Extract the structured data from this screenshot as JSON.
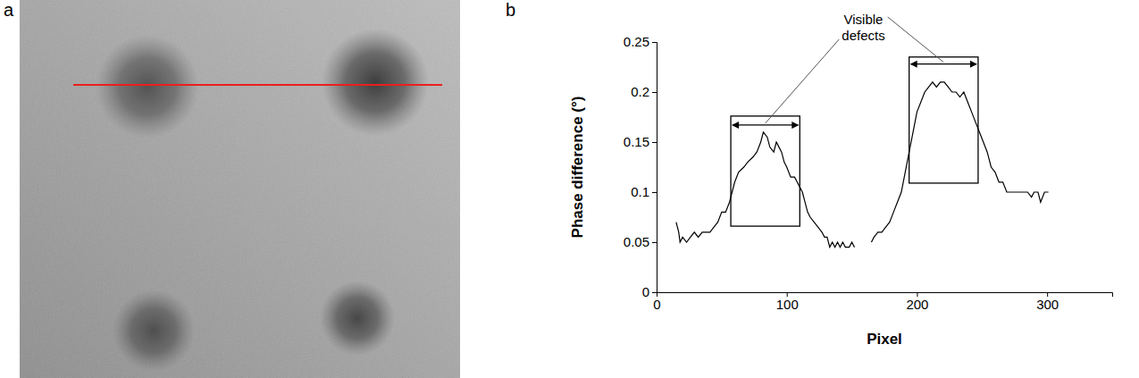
{
  "image_panel": {
    "label": "a"
  },
  "chart_data": {
    "type": "line",
    "panel": "b",
    "x_label": "Pixel",
    "y_label": "Phase difference (°)",
    "annotation": "Visible defects",
    "highlights": [
      {
        "x": [
          57,
          110
        ],
        "y": [
          0.066,
          0.176
        ],
        "arrow_y": 0.167
      },
      {
        "x": [
          194,
          247
        ],
        "y": [
          0.109,
          0.235
        ],
        "arrow_y": 0.228
      }
    ],
    "color": "#000000",
    "xlim": [
      0,
      350
    ],
    "xticks": [
      0,
      100,
      200,
      300
    ],
    "ylim": [
      0,
      0.25
    ],
    "yticks": [
      0,
      0.05,
      0.1,
      0.15,
      0.2,
      0.25
    ],
    "x": [
      15,
      17,
      18,
      20,
      23,
      26,
      29,
      32,
      35,
      38,
      41,
      44,
      47,
      50,
      53,
      56,
      58,
      60,
      63,
      67,
      70,
      74,
      77,
      80,
      82,
      85,
      87,
      90,
      92,
      94,
      96,
      98,
      100,
      103,
      106,
      108,
      110,
      112,
      114,
      116,
      118,
      121,
      124,
      127,
      129,
      131,
      133,
      135,
      137,
      139,
      141,
      143,
      145,
      148,
      150,
      152,
      158,
      165,
      167,
      170,
      173,
      176,
      179,
      182,
      185,
      188,
      191,
      194,
      197,
      200,
      203,
      206,
      209,
      212,
      215,
      218,
      221,
      224,
      227,
      230,
      233,
      236,
      239,
      242,
      245,
      248,
      251,
      254,
      257,
      260,
      263,
      266,
      269,
      272,
      276,
      280,
      285,
      288,
      290,
      293,
      295,
      298,
      301
    ],
    "values": [
      0.07,
      0.06,
      0.05,
      0.055,
      0.05,
      0.055,
      0.06,
      0.055,
      0.06,
      0.06,
      0.06,
      0.065,
      0.07,
      0.08,
      0.08,
      0.09,
      0.1,
      0.11,
      0.12,
      0.125,
      0.13,
      0.135,
      0.14,
      0.15,
      0.16,
      0.155,
      0.145,
      0.14,
      0.15,
      0.145,
      0.14,
      0.13,
      0.125,
      0.115,
      0.115,
      0.11,
      0.105,
      0.1,
      0.09,
      0.08,
      0.075,
      0.07,
      0.065,
      0.06,
      0.055,
      0.055,
      0.045,
      0.05,
      0.045,
      0.05,
      0.045,
      0.05,
      0.045,
      0.045,
      0.05,
      0.045,
      null,
      0.05,
      0.055,
      0.06,
      0.06,
      0.065,
      0.07,
      0.08,
      0.09,
      0.1,
      0.12,
      0.14,
      0.16,
      0.18,
      0.19,
      0.2,
      0.205,
      0.21,
      0.205,
      0.21,
      0.21,
      0.205,
      0.2,
      0.2,
      0.195,
      0.2,
      0.19,
      0.18,
      0.17,
      0.16,
      0.15,
      0.14,
      0.125,
      0.12,
      0.11,
      0.11,
      0.1,
      0.1,
      0.1,
      0.1,
      0.1,
      0.095,
      0.1,
      0.1,
      0.09,
      0.1,
      0.1
    ]
  }
}
